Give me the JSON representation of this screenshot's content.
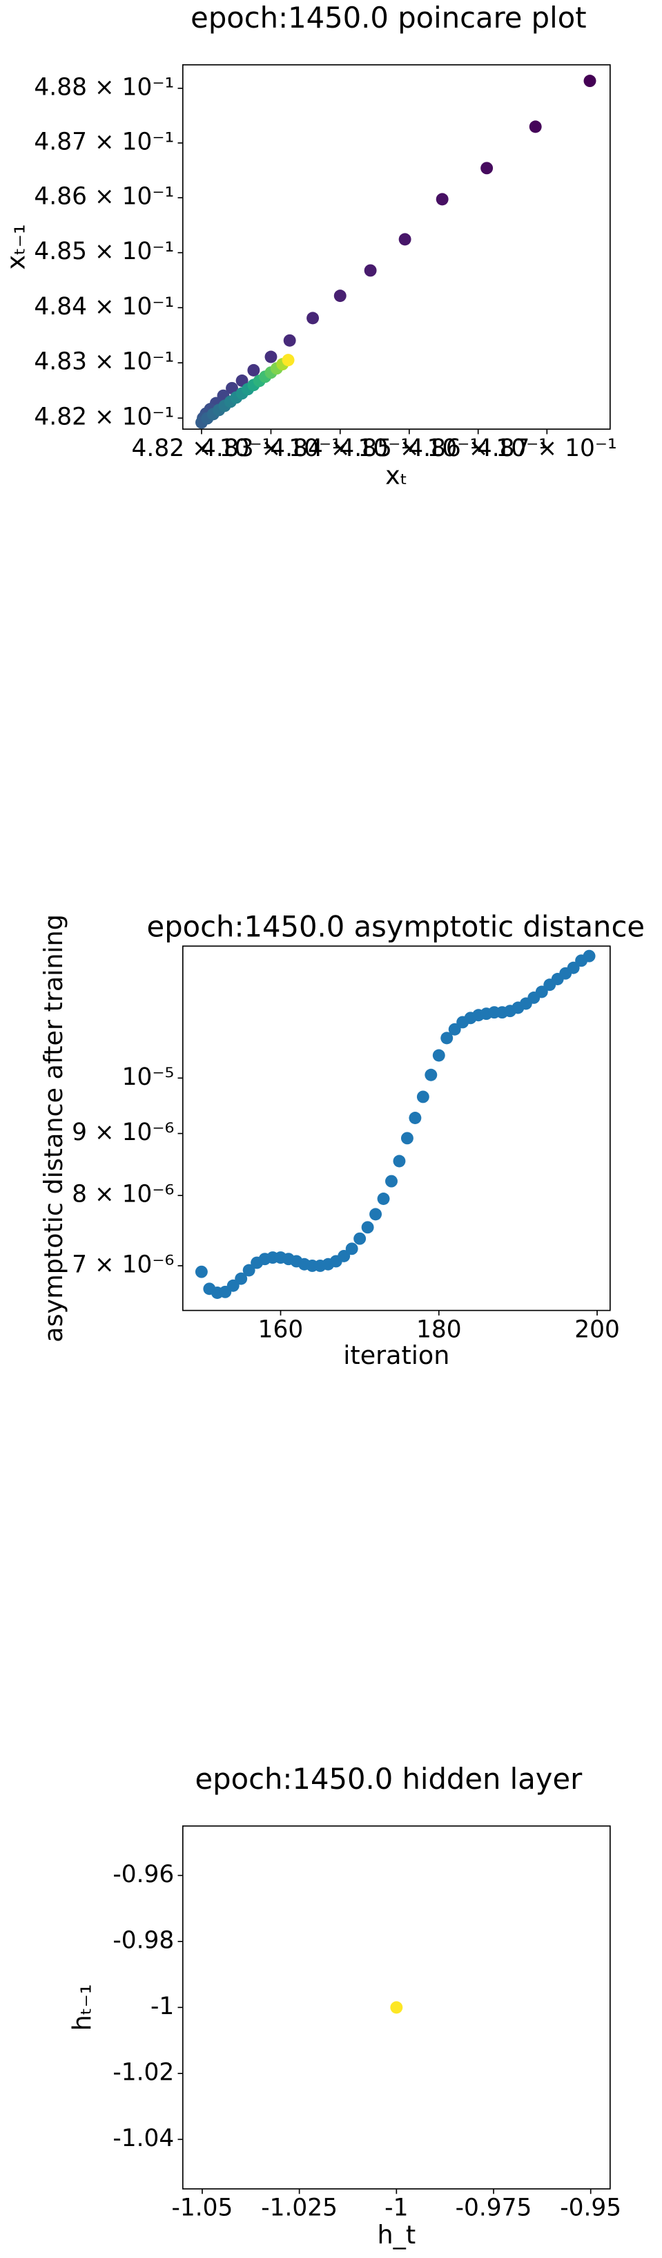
{
  "chart_data": [
    {
      "type": "scatter",
      "title": "epoch:1450.0 poincare plot",
      "xlabel": "xₜ",
      "ylabel": "xₜ₋₁",
      "xscale": "log",
      "yscale": "log",
      "x": [
        0.487625,
        0.486833,
        0.486125,
        0.485479,
        0.484938,
        0.484438,
        0.484,
        0.483604,
        0.483271,
        0.483,
        0.48275,
        0.482583,
        0.482438,
        0.482313,
        0.482208,
        0.482125,
        0.482063,
        0.482021,
        0.482,
        0.482083,
        0.482167,
        0.48225,
        0.482333,
        0.482417,
        0.4825,
        0.482583,
        0.482667,
        0.48275,
        0.482833,
        0.482917,
        0.483,
        0.483083,
        0.483167,
        0.48325
      ],
      "y": [
        0.488135,
        0.487297,
        0.486541,
        0.485973,
        0.485243,
        0.484676,
        0.484216,
        0.483811,
        0.483405,
        0.483108,
        0.482865,
        0.482676,
        0.482541,
        0.482405,
        0.48227,
        0.482162,
        0.482081,
        0.482,
        0.48192,
        0.481995,
        0.482071,
        0.482146,
        0.482221,
        0.482297,
        0.482372,
        0.482447,
        0.482523,
        0.482598,
        0.482673,
        0.482749,
        0.482824,
        0.482899,
        0.482975,
        0.48305
      ],
      "colors": [
        "#440154",
        "#450559",
        "#460b5e",
        "#471063",
        "#471669",
        "#481b6d",
        "#482071",
        "#472676",
        "#472a7a",
        "#46307e",
        "#453581",
        "#443a83",
        "#423f85",
        "#404588",
        "#3e4989",
        "#3c4f8a",
        "#3a538b",
        "#38588c",
        "#355f8d",
        "#32648e",
        "#2f6b8e",
        "#2c718e",
        "#29798e",
        "#26818e",
        "#23898e",
        "#21918c",
        "#1f9a8a",
        "#22a785",
        "#2db27d",
        "#40bd72",
        "#5cc863",
        "#7fd34e",
        "#addc30",
        "#fde725"
      ],
      "xlim": [
        0.48173,
        0.48792
      ],
      "ylim": [
        0.4818,
        0.48843
      ],
      "xticks": [
        {
          "value": 0.482,
          "label": "4.82 × 10⁻¹"
        },
        {
          "value": 0.483,
          "label": "4.83 × 10⁻¹"
        },
        {
          "value": 0.484,
          "label": "4.84 × 10⁻¹"
        },
        {
          "value": 0.485,
          "label": "4.85 × 10⁻¹"
        },
        {
          "value": 0.486,
          "label": "4.86 × 10⁻¹"
        },
        {
          "value": 0.487,
          "label": "4.87 × 10⁻¹"
        }
      ],
      "yticks": [
        {
          "value": 0.482,
          "label": "4.82 × 10⁻¹"
        },
        {
          "value": 0.483,
          "label": "4.83 × 10⁻¹"
        },
        {
          "value": 0.484,
          "label": "4.84 × 10⁻¹"
        },
        {
          "value": 0.485,
          "label": "4.85 × 10⁻¹"
        },
        {
          "value": 0.486,
          "label": "4.86 × 10⁻¹"
        },
        {
          "value": 0.487,
          "label": "4.87 × 10⁻¹"
        },
        {
          "value": 0.488,
          "label": "4.88 × 10⁻¹"
        }
      ]
    },
    {
      "type": "scatter",
      "title": "epoch:1450.0 asymptotic distance",
      "xlabel": "iteration",
      "ylabel": "asymptotic distance after training",
      "yscale": "log",
      "color": "#1f77b4",
      "x": [
        150,
        151,
        152,
        153,
        154,
        155,
        156,
        157,
        158,
        159,
        160,
        161,
        162,
        163,
        164,
        165,
        166,
        167,
        168,
        169,
        170,
        171,
        172,
        173,
        174,
        175,
        176,
        177,
        178,
        179,
        180,
        181,
        182,
        183,
        184,
        185,
        186,
        187,
        188,
        189,
        190,
        191,
        192,
        193,
        194,
        195,
        196,
        197,
        198,
        199
      ],
      "y": [
        6.92e-06,
        6.7e-06,
        6.65e-06,
        6.66e-06,
        6.74e-06,
        6.83e-06,
        6.94e-06,
        7.04e-06,
        7.09e-06,
        7.11e-06,
        7.11e-06,
        7.09e-06,
        7.06e-06,
        7.02e-06,
        7e-06,
        7e-06,
        7.02e-06,
        7.06e-06,
        7.13e-06,
        7.23e-06,
        7.37e-06,
        7.53e-06,
        7.72e-06,
        7.95e-06,
        8.22e-06,
        8.54e-06,
        8.92e-06,
        9.27e-06,
        9.65e-06,
        1.006e-05,
        1.044e-05,
        1.079e-05,
        1.097e-05,
        1.112e-05,
        1.121e-05,
        1.127e-05,
        1.13e-05,
        1.133e-05,
        1.133e-05,
        1.136e-05,
        1.143e-05,
        1.152e-05,
        1.165e-05,
        1.178e-05,
        1.194e-05,
        1.207e-05,
        1.22e-05,
        1.233e-05,
        1.25e-05,
        1.261e-05
      ],
      "xlim": [
        147.64,
        201.64
      ],
      "ylim": [
        6.43e-06,
        1.285e-05
      ],
      "xticks": [
        160,
        180,
        200
      ],
      "yticks": [
        {
          "value": 7e-06,
          "label": "7 × 10⁻⁶"
        },
        {
          "value": 8e-06,
          "label": "8 × 10⁻⁶"
        },
        {
          "value": 9e-06,
          "label": "9 × 10⁻⁶"
        },
        {
          "value": 1e-05,
          "label": "10⁻⁵"
        }
      ]
    },
    {
      "type": "scatter",
      "title": "epoch:1450.0 hidden layer",
      "xlabel": "h_t",
      "ylabel": "hₜ₋₁",
      "color": "#fde725",
      "x": [
        -1.0
      ],
      "y": [
        -1.0
      ],
      "xlim": [
        -1.055,
        -0.945
      ],
      "ylim": [
        -1.055,
        -0.945
      ],
      "xticks": [
        -1.05,
        -1.025,
        -1.0,
        -0.975,
        -0.95
      ],
      "yticks": [
        -1.04,
        -1.02,
        -1.0,
        -0.98,
        -0.96
      ]
    }
  ]
}
